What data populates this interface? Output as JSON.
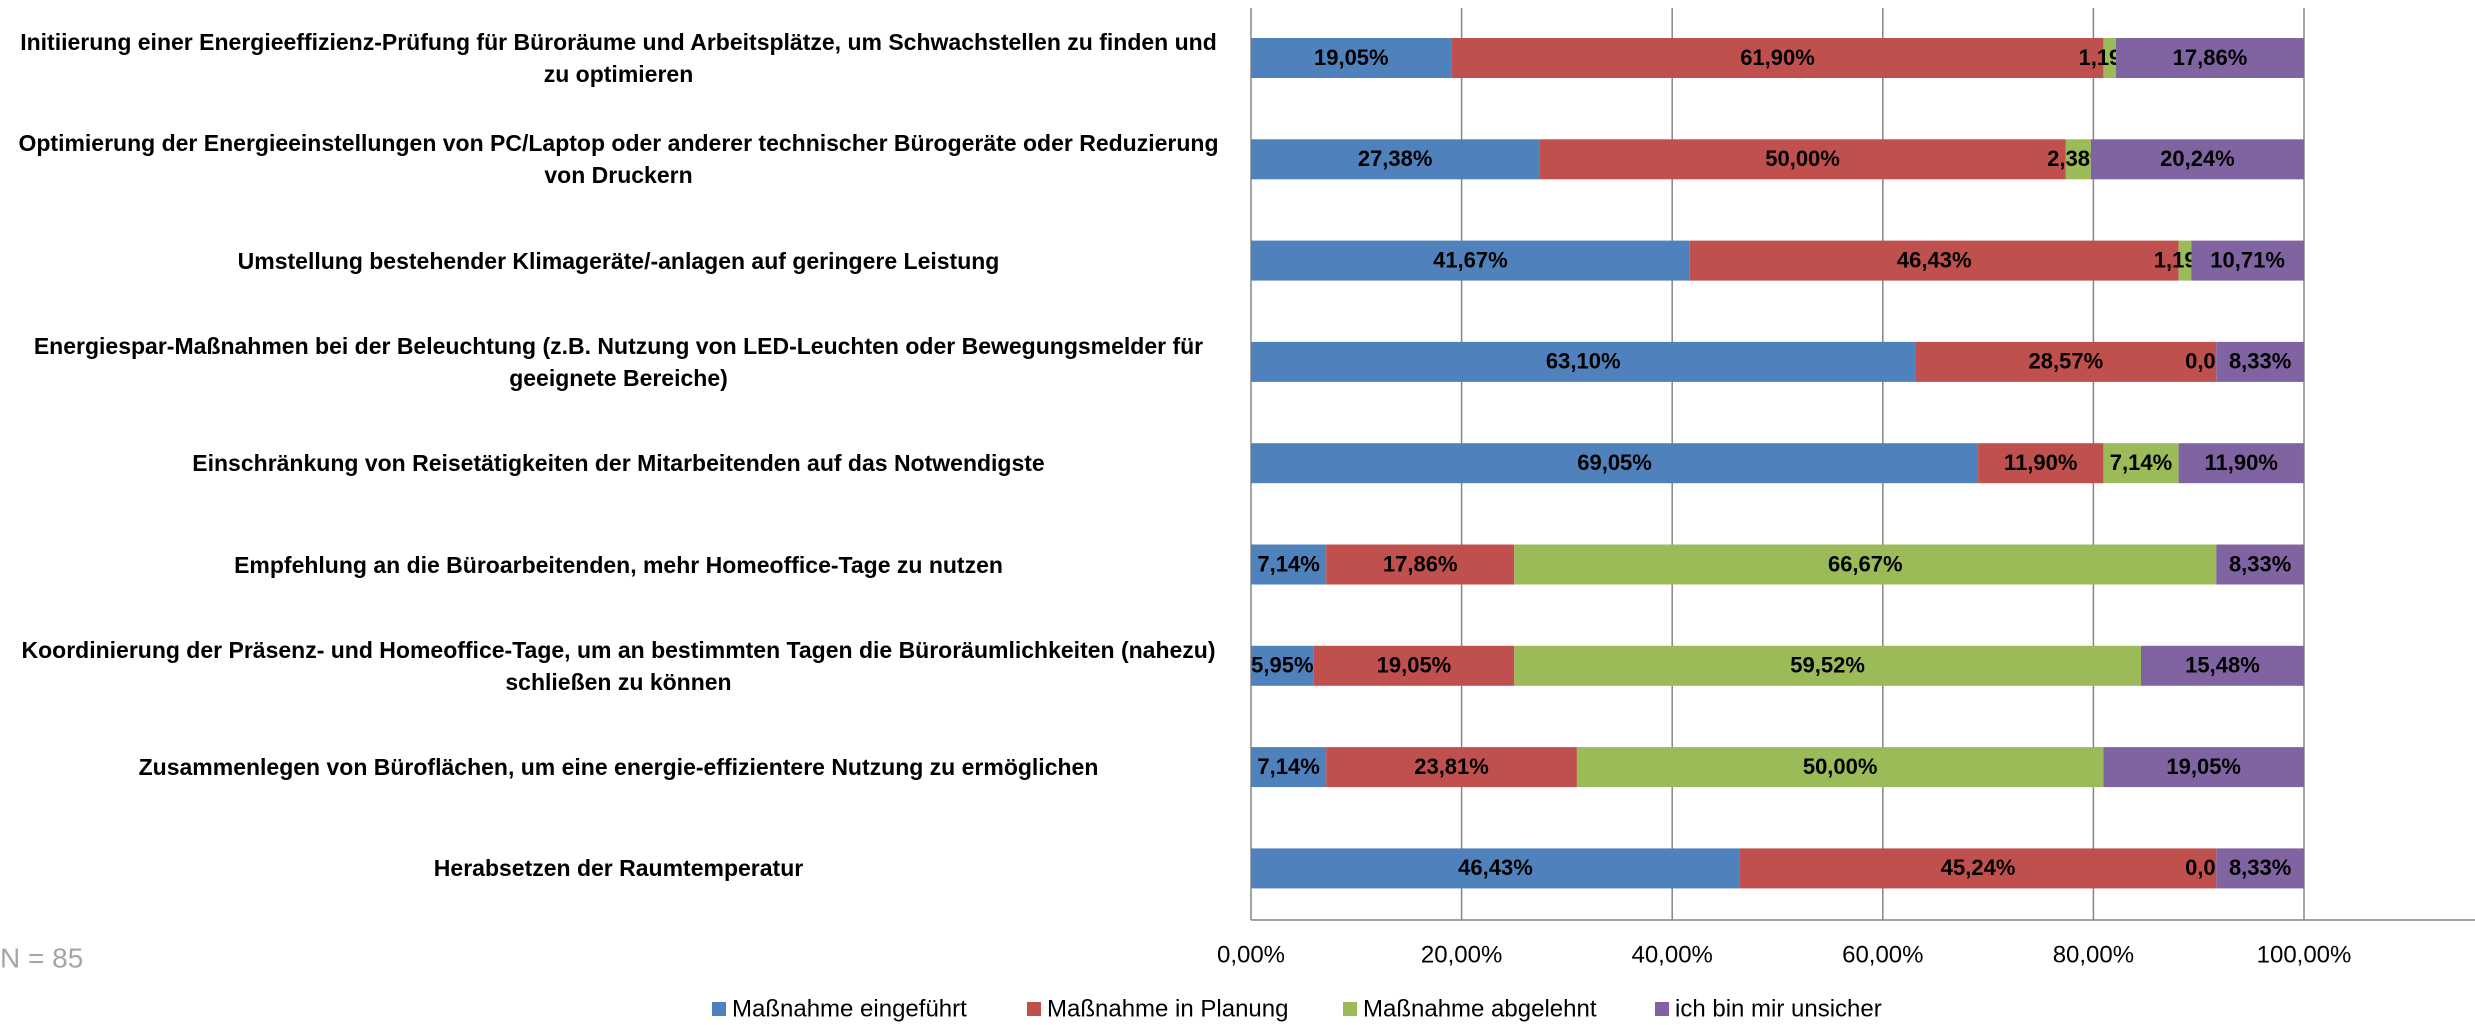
{
  "chart_data": {
    "type": "stacked_barh",
    "categories": [
      "Initiierung einer Energieeffizienz-Prüfung für Büroräume und Arbeitsplätze, um Schwachstellen zu finden und zu optimieren",
      "Optimierung der Energieeinstellungen von PC/Laptop oder anderer technischer Bürogeräte oder Reduzierung von Druckern",
      "Umstellung bestehender Klimageräte/-anlagen auf geringere Leistung",
      "Energiespar-Maßnahmen bei der Beleuchtung (z.B. Nutzung von LED-Leuchten oder Bewegungsmelder für geeignete Bereiche)",
      "Einschränkung von Reisetätigkeiten der Mitarbeitenden auf das Notwendigste",
      "Empfehlung an die Büroarbeitenden, mehr Homeoffice-Tage zu nutzen",
      "Koordinierung der Präsenz- und Homeoffice-Tage, um an bestimmten Tagen die Büroräumlichkeiten (nahezu) schließen zu können",
      "Zusammenlegen von Büroflächen, um eine energie-effizientere Nutzung zu ermöglichen",
      "Herabsetzen der Raumtemperatur"
    ],
    "series": [
      {
        "name": "Maßnahme eingeführt",
        "color": "#4f81bd",
        "values": [
          19.05,
          27.38,
          41.67,
          63.1,
          69.05,
          7.14,
          5.95,
          7.14,
          46.43
        ],
        "value_labels": [
          "19,05%",
          "27,38%",
          "41,67%",
          "63,10%",
          "69,05%",
          "7,14%",
          "5,95%",
          "7,14%",
          "46,43%"
        ]
      },
      {
        "name": "Maßnahme in Planung",
        "color": "#c0504d",
        "values": [
          61.9,
          50.0,
          46.43,
          28.57,
          11.9,
          17.86,
          19.05,
          23.81,
          45.24
        ],
        "value_labels": [
          "61,90%",
          "50,00%",
          "46,43%",
          "28,57%",
          "11,90%",
          "17,86%",
          "19,05%",
          "23,81%",
          "45,24%"
        ]
      },
      {
        "name": "Maßnahme abgelehnt",
        "color": "#9bbb59",
        "values": [
          1.19,
          2.38,
          1.19,
          0.0,
          7.14,
          66.67,
          59.52,
          50.0,
          0.0
        ],
        "value_labels": [
          "1,19%",
          "2,38%",
          "1,19%",
          "0,00%",
          "7,14%",
          "66,67%",
          "59,52%",
          "50,00%",
          "0,00%"
        ]
      },
      {
        "name": "ich bin mir unsicher",
        "color": "#8064a2",
        "values": [
          17.86,
          20.24,
          10.71,
          8.33,
          11.9,
          8.33,
          15.48,
          19.05,
          8.33
        ],
        "value_labels": [
          "17,86%",
          "20,24%",
          "10,71%",
          "8,33%",
          "11,90%",
          "8,33%",
          "15,48%",
          "19,05%",
          "8,33%"
        ]
      }
    ],
    "xlim": [
      0,
      100
    ],
    "xticks": [
      {
        "value": 0,
        "label": "0,00%"
      },
      {
        "value": 20,
        "label": "20,00%"
      },
      {
        "value": 40,
        "label": "40,00%"
      },
      {
        "value": 60,
        "label": "60,00%"
      },
      {
        "value": 80,
        "label": "80,00%"
      },
      {
        "value": 100,
        "label": "100,00%"
      }
    ],
    "grid": true,
    "legend": "bottom",
    "annotation": "N = 85"
  }
}
